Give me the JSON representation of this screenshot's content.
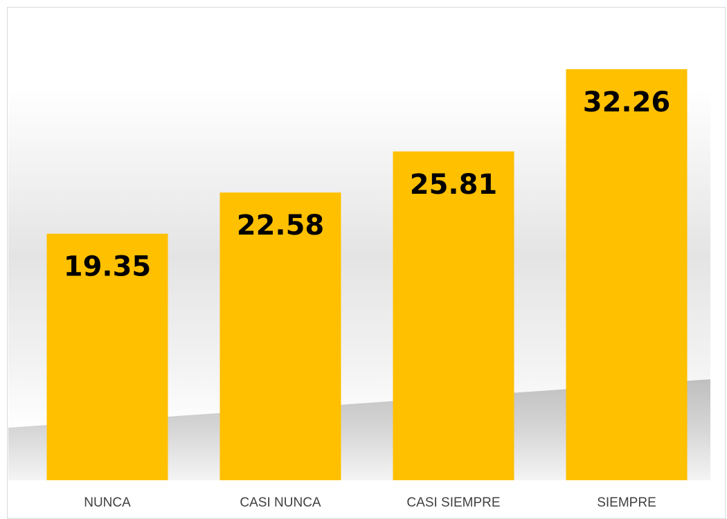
{
  "chart_data": {
    "type": "bar",
    "categories": [
      "NUNCA",
      "CASI NUNCA",
      "CASI SIEMPRE",
      "SIEMPRE"
    ],
    "values": [
      19.35,
      22.58,
      25.81,
      32.26
    ],
    "data_labels": [
      "19.35",
      "22.58",
      "25.81",
      "32.26"
    ],
    "title": "",
    "xlabel": "",
    "ylabel": "",
    "ylim": [
      0,
      35
    ],
    "grid": false,
    "legend": "none",
    "colors": {
      "bar": "#FFC000",
      "data_label": "#000000",
      "category_label": "#404040",
      "frame_border": "#d9d9d9"
    }
  }
}
